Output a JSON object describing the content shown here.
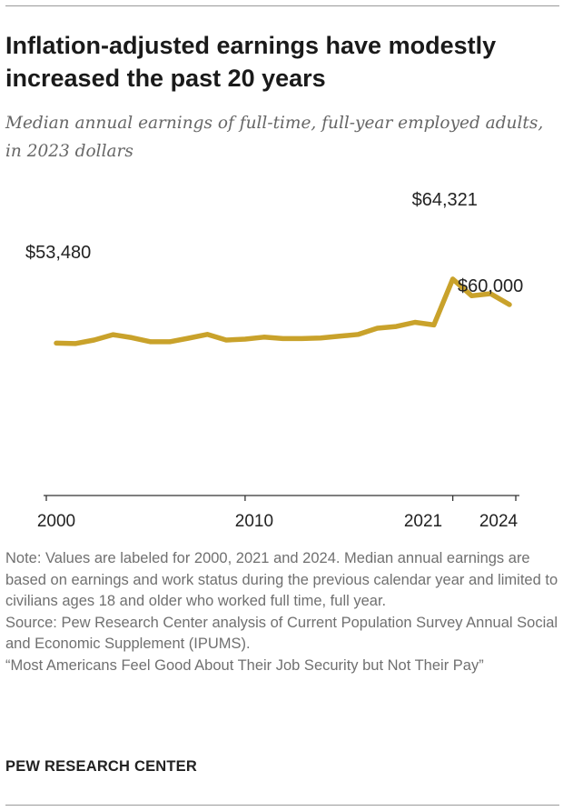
{
  "header": {
    "title": "Inflation-adjusted earnings have modestly increased the past 20 years",
    "subtitle": "Median annual earnings of full-time, full-year employed adults, in 2023 dollars"
  },
  "chart_data": {
    "type": "line",
    "title": "Inflation-adjusted earnings have modestly increased the past 20 years",
    "subtitle": "Median annual earnings of full-time, full-year employed adults, in 2023 dollars",
    "xlabel": "",
    "ylabel": "",
    "x": [
      2000,
      2001,
      2002,
      2003,
      2004,
      2005,
      2006,
      2007,
      2008,
      2009,
      2010,
      2011,
      2012,
      2013,
      2014,
      2015,
      2016,
      2017,
      2018,
      2019,
      2020,
      2021,
      2022,
      2023,
      2024
    ],
    "series": [
      {
        "name": "Median annual earnings",
        "color": "#c9a22b",
        "values": [
          53480,
          53400,
          54000,
          54900,
          54400,
          53700,
          53700,
          54300,
          54950,
          54000,
          54150,
          54500,
          54250,
          54250,
          54350,
          54650,
          54950,
          56000,
          56300,
          57000,
          56550,
          64321,
          61500,
          61850,
          60000
        ]
      }
    ],
    "data_labels": [
      {
        "x": 2000,
        "text": "$53,480"
      },
      {
        "x": 2021,
        "text": "$64,321"
      },
      {
        "x": 2024,
        "text": "$60,000"
      }
    ],
    "x_ticks": [
      2000,
      2010,
      2021,
      2024
    ],
    "x_tick_labels": [
      "2000",
      "2010",
      "2021",
      "2024"
    ],
    "xlim": [
      2000,
      2024
    ],
    "ylim": [
      30000,
      70000
    ],
    "grid": false,
    "legend": "none"
  },
  "notes": {
    "note": "Note: Values are labeled for 2000, 2021 and 2024. Median annual earnings are based on earnings and work status during the previous calendar year and limited to civilians ages 18 and older who worked full time, full year.",
    "source": "Source: Pew Research Center analysis of Current Population Survey Annual Social and Economic Supplement (IPUMS).",
    "report": "“Most Americans Feel Good About Their Job Security but Not Their Pay”"
  },
  "footer": {
    "brand": "PEW RESEARCH CENTER"
  }
}
